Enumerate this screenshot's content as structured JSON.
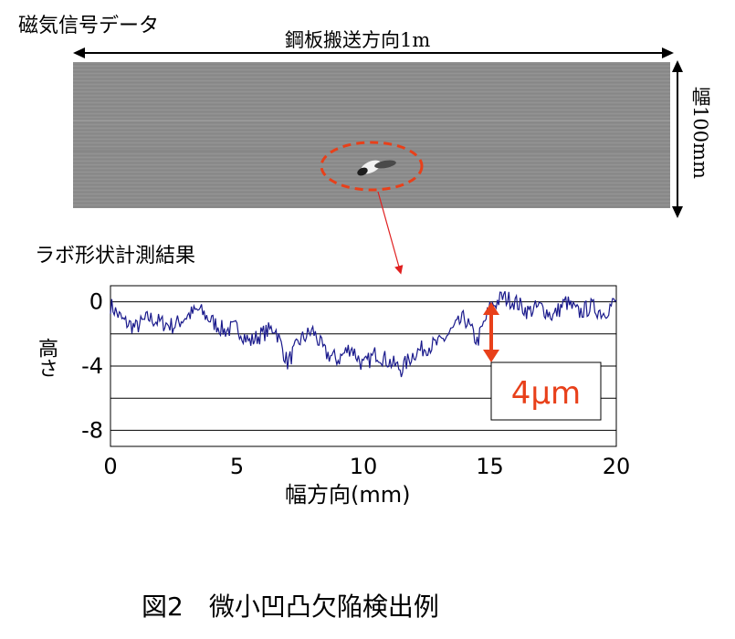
{
  "magnetic": {
    "title": "磁気信号データ",
    "transport_label": "鋼板搬送方向1m",
    "width_label": "幅100mm"
  },
  "lab": {
    "title": "ラボ形状計測結果"
  },
  "chart_data": {
    "type": "line",
    "title": "",
    "xlabel": "幅方向(mm)",
    "ylabel": "高さ",
    "xlim": [
      0,
      20
    ],
    "ylim": [
      -9,
      1
    ],
    "xticks": [
      0,
      5,
      10,
      15,
      20
    ],
    "yticks": [
      0,
      -4,
      -8
    ],
    "grid_y": [
      0,
      -2,
      -4,
      -6,
      -8
    ],
    "series": [
      {
        "color": "#1a1a8c",
        "x": [
          0,
          0.5,
          1,
          1.5,
          2,
          2.5,
          3,
          3.5,
          4,
          4.5,
          5,
          5.5,
          6,
          6.5,
          7,
          7.5,
          8,
          8.5,
          9,
          9.5,
          10,
          10.5,
          11,
          11.5,
          12,
          12.5,
          13,
          13.5,
          14,
          14.5,
          15,
          15.5,
          16,
          16.5,
          17,
          17.5,
          18,
          18.5,
          19,
          19.5,
          20
        ],
        "y": [
          -0.2,
          -1.2,
          -1.6,
          -1.0,
          -1.3,
          -1.5,
          -0.9,
          -0.5,
          -1.2,
          -1.8,
          -1.6,
          -2.5,
          -2.0,
          -1.6,
          -3.8,
          -2.4,
          -1.8,
          -3.2,
          -3.6,
          -2.8,
          -4.0,
          -3.2,
          -3.7,
          -4.2,
          -3.2,
          -2.8,
          -2.6,
          -1.8,
          -1.0,
          -2.5,
          -0.4,
          0.3,
          0.0,
          -0.6,
          -0.3,
          -0.9,
          0.0,
          -0.7,
          -0.3,
          -0.7,
          0.1
        ]
      }
    ],
    "annotation": "4μm"
  },
  "caption": "図2　微小凹凸欠陥検出例"
}
